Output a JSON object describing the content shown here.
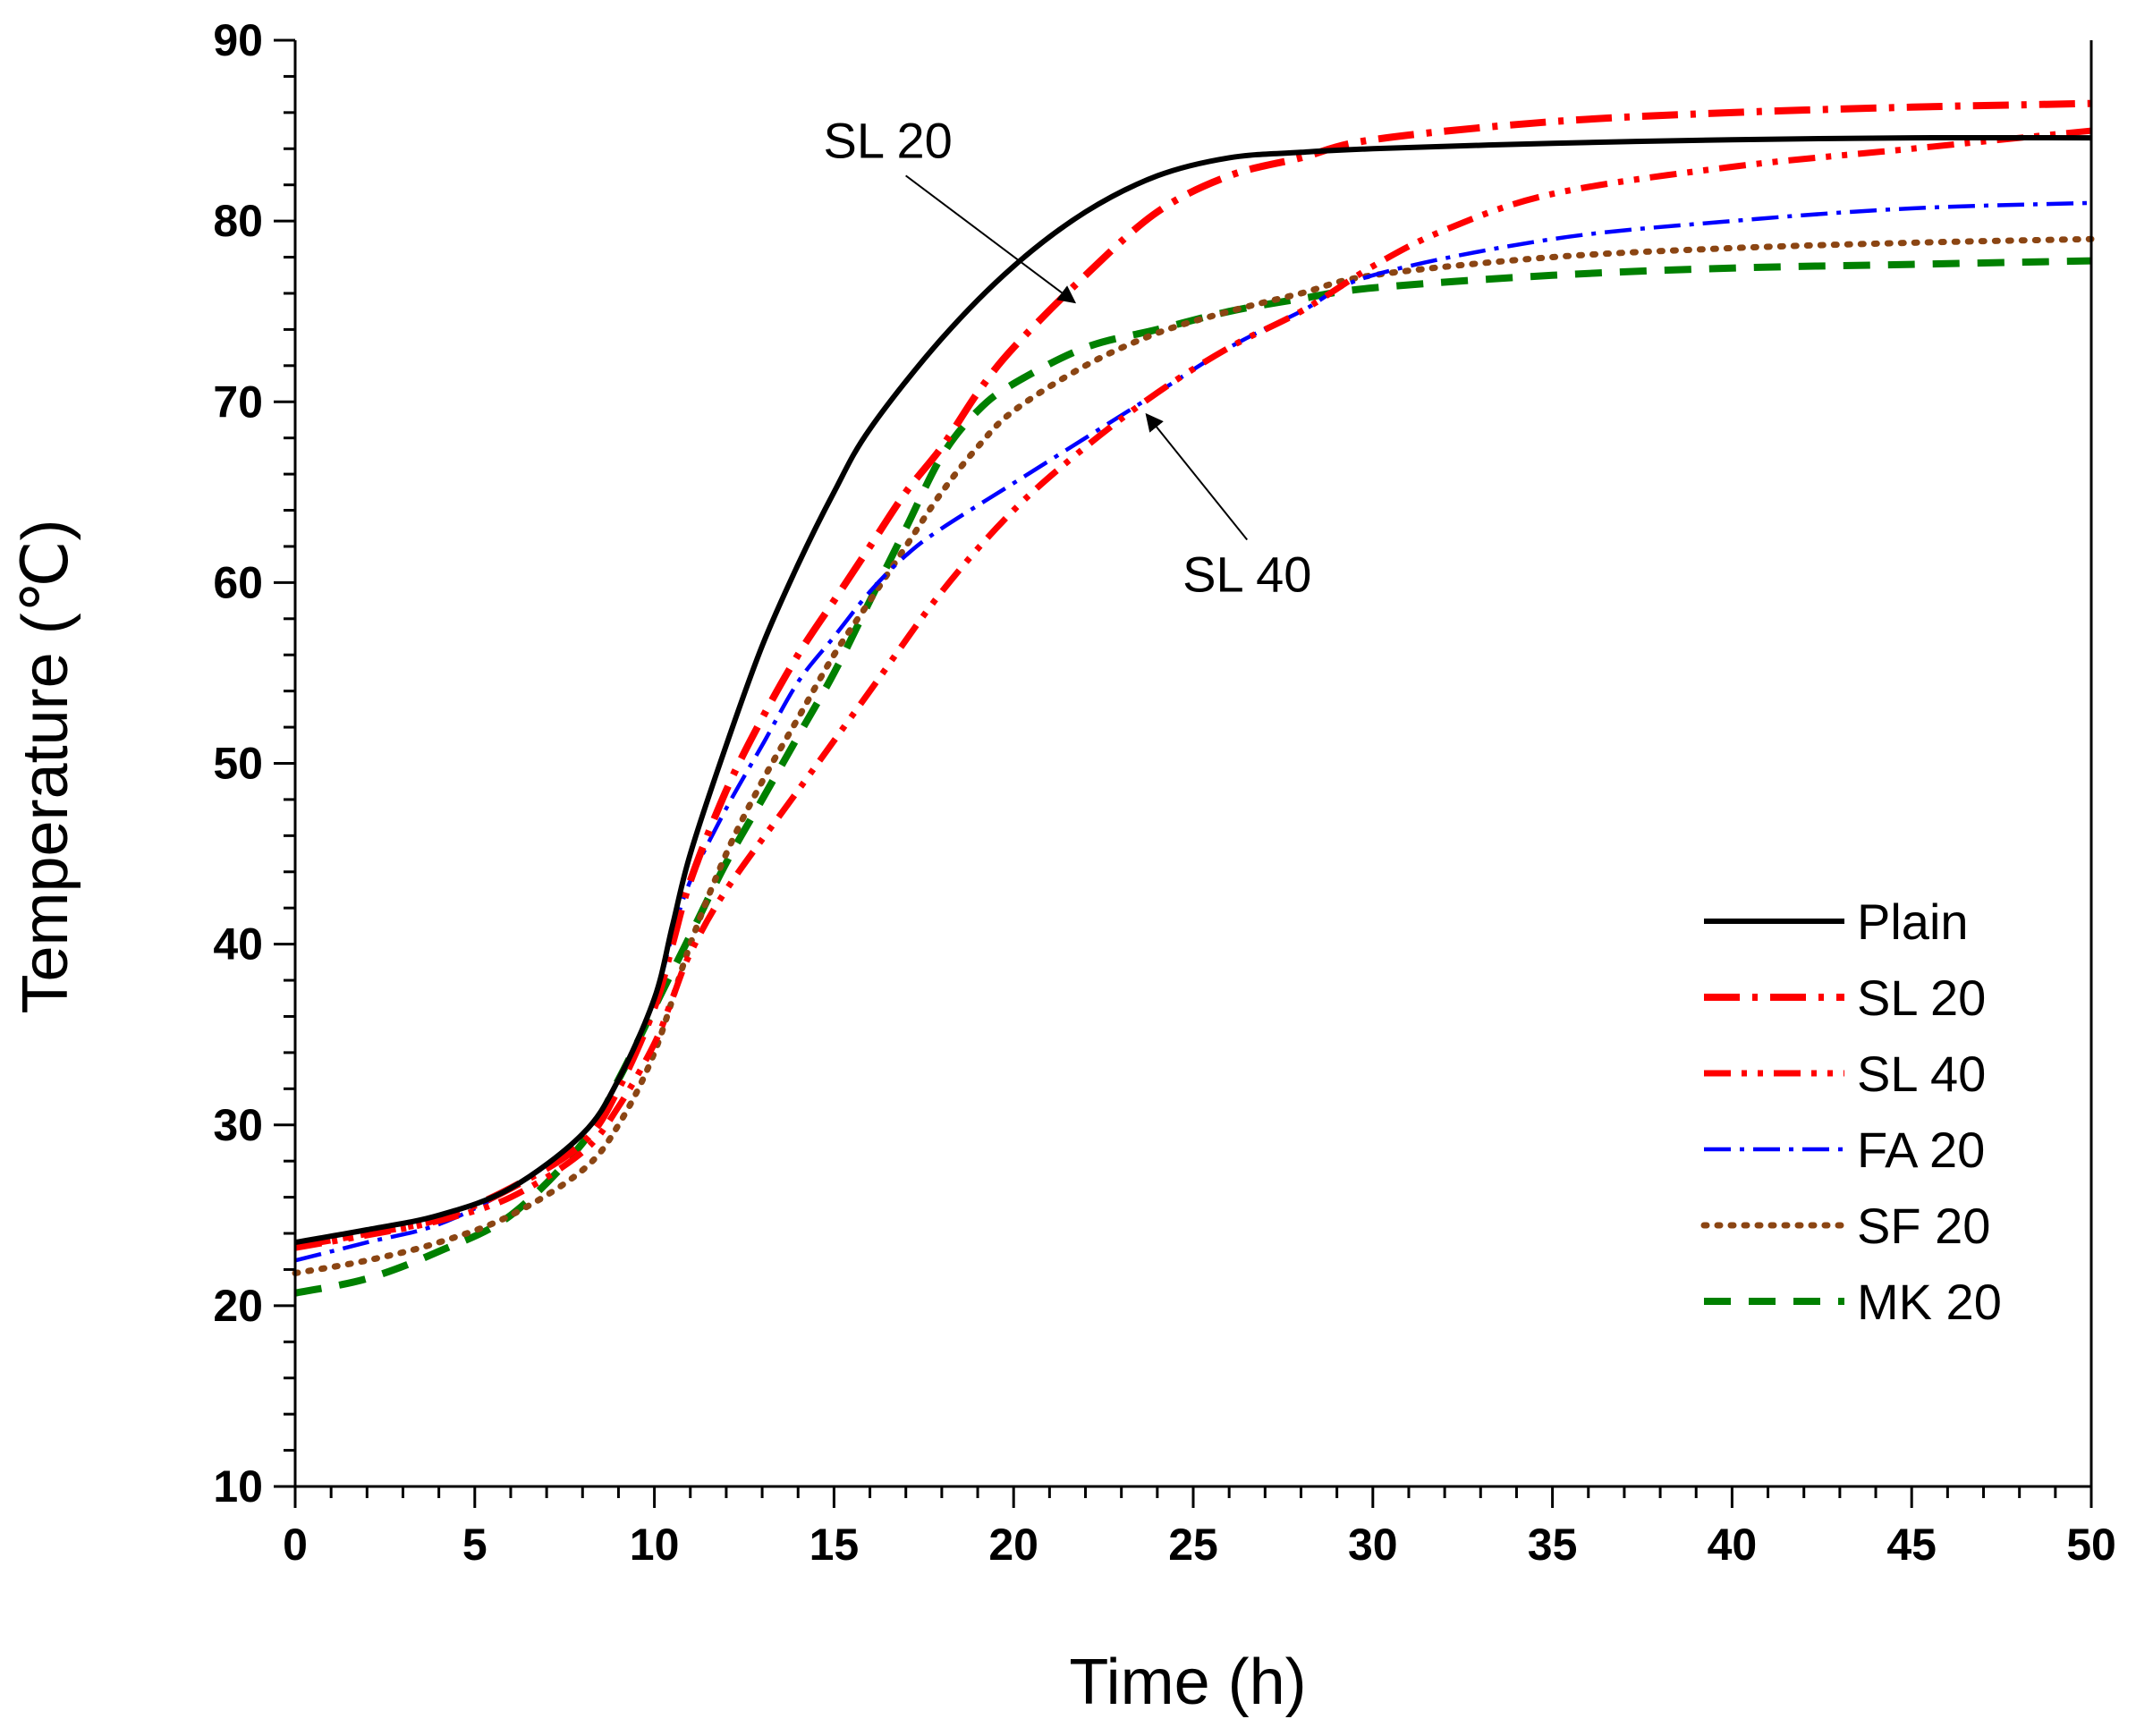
{
  "chart_data": {
    "type": "line",
    "title": "",
    "xlabel": "Time (h)",
    "ylabel": "Temperature (℃)",
    "xlim": [
      0,
      50
    ],
    "ylim": [
      10,
      90
    ],
    "xticks": [
      0,
      5,
      10,
      15,
      20,
      25,
      30,
      35,
      40,
      45,
      50
    ],
    "yticks": [
      10,
      20,
      30,
      40,
      50,
      60,
      70,
      80,
      90
    ],
    "xminor_step": 1,
    "yminor_step": 2,
    "grid": false,
    "legend_position": "bottom-right",
    "series": [
      {
        "name": "Plain",
        "color": "#000000",
        "style": "solid",
        "x": [
          0,
          2,
          4,
          6,
          8,
          9,
          10,
          10.5,
          11,
          12,
          13,
          14,
          15,
          16,
          18,
          20,
          22,
          24,
          26,
          28,
          30,
          35,
          40,
          45,
          50
        ],
        "y": [
          23.5,
          24.2,
          25,
          26.5,
          29.5,
          32.5,
          37,
          41,
          45,
          51,
          56.5,
          61,
          65,
          68.5,
          73.5,
          77.5,
          80.5,
          82.5,
          83.5,
          83.8,
          84,
          84.3,
          84.5,
          84.6,
          84.6
        ]
      },
      {
        "name": "SL 20",
        "color": "#ff0000",
        "style": "dashdot-long",
        "x": [
          0,
          2,
          4,
          6,
          8,
          9,
          10,
          10.5,
          11,
          12,
          13,
          14,
          15,
          16,
          17,
          18,
          19,
          20,
          22,
          24,
          26,
          28,
          30,
          35,
          40,
          45,
          50
        ],
        "y": [
          23.3,
          24,
          24.8,
          26.5,
          29,
          32,
          36.5,
          40,
          43.5,
          48.5,
          52.5,
          56,
          59,
          62,
          65,
          67.5,
          70.5,
          73,
          77,
          80.5,
          82.5,
          83.5,
          84.5,
          85.5,
          86,
          86.3,
          86.5
        ]
      },
      {
        "name": "SL 40",
        "color": "#ff0000",
        "style": "dashdotdot",
        "x": [
          0,
          2,
          4,
          6,
          8,
          9,
          10,
          10.5,
          11,
          12,
          14,
          16,
          18,
          20,
          22,
          24,
          26,
          28,
          30,
          32,
          35,
          40,
          45,
          50
        ],
        "y": [
          23.2,
          23.9,
          24.7,
          26,
          28.5,
          31,
          34.5,
          37,
          39.5,
          43,
          48.5,
          54,
          59.5,
          64,
          67.5,
          70.5,
          73,
          75,
          77.5,
          79.5,
          81.5,
          83,
          84,
          85
        ]
      },
      {
        "name": "FA 20",
        "color": "#0000ff",
        "style": "dashdot",
        "x": [
          0,
          2,
          4,
          6,
          8,
          9,
          10,
          10.5,
          11,
          12,
          13,
          14,
          15,
          16,
          17,
          18,
          20,
          22,
          24,
          26,
          28,
          30,
          35,
          40,
          45,
          50
        ],
        "y": [
          22.5,
          23.5,
          24.5,
          26.5,
          29.5,
          32.5,
          37,
          40.5,
          43.5,
          47.5,
          51,
          54.5,
          57,
          59.5,
          61.5,
          63,
          65.5,
          68,
          70.5,
          73,
          75,
          77,
          79,
          80,
          80.7,
          81
        ]
      },
      {
        "name": "SF 20",
        "color": "#8b4513",
        "style": "dotted",
        "x": [
          0,
          2,
          4,
          6,
          8,
          9,
          10,
          11,
          12,
          13,
          14,
          15,
          16,
          17,
          18,
          19,
          20,
          22,
          24,
          26,
          28,
          30,
          35,
          40,
          45,
          50
        ],
        "y": [
          21.8,
          22.5,
          23.5,
          25,
          27.5,
          30,
          34,
          40,
          45,
          49,
          52.5,
          56,
          59,
          62,
          65,
          67.5,
          69.5,
          72,
          73.8,
          75,
          76,
          77,
          78,
          78.5,
          78.8,
          79
        ]
      },
      {
        "name": "MK 20",
        "color": "#008000",
        "style": "dashed",
        "x": [
          0,
          2,
          4,
          6,
          8,
          9,
          10,
          11,
          12,
          13,
          14,
          15,
          16,
          17,
          18,
          19,
          20,
          22,
          24,
          26,
          28,
          30,
          35,
          40,
          45,
          50
        ],
        "y": [
          20.7,
          21.5,
          23,
          25,
          29,
          32.5,
          36.5,
          40.5,
          44.5,
          48,
          51.5,
          55,
          59,
          63,
          67,
          69.5,
          71,
          73,
          74,
          75,
          75.7,
          76.3,
          77,
          77.4,
          77.6,
          77.8
        ]
      }
    ],
    "annotations": [
      {
        "text": "SL 20",
        "text_at": [
          16.5,
          83.5
        ],
        "arrow_to": [
          21.7,
          75.5
        ]
      },
      {
        "text": "SL 40",
        "text_at": [
          26.5,
          59.5
        ],
        "arrow_to": [
          23.7,
          69.3
        ]
      }
    ]
  }
}
